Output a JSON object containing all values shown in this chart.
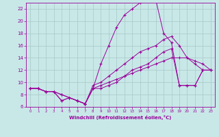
{
  "xlabel": "Windchill (Refroidissement éolien,°C)",
  "bg_color": "#c8e8e8",
  "grid_color": "#a8c8c8",
  "line_color": "#990099",
  "xlim": [
    -0.5,
    23.5
  ],
  "ylim": [
    6,
    23
  ],
  "xticks": [
    0,
    1,
    2,
    3,
    4,
    5,
    6,
    7,
    8,
    9,
    10,
    11,
    12,
    13,
    14,
    15,
    16,
    17,
    18,
    19,
    20,
    21,
    22,
    23
  ],
  "yticks": [
    6,
    8,
    10,
    12,
    14,
    16,
    18,
    20,
    22
  ],
  "series": [
    {
      "x": [
        0,
        1,
        2,
        3,
        4,
        5,
        6,
        7,
        8,
        9,
        10,
        11,
        12,
        13,
        14,
        15,
        16,
        17,
        18,
        19,
        20,
        21,
        22,
        23
      ],
      "y": [
        9,
        9,
        8.5,
        8.5,
        7,
        7.5,
        7,
        6.5,
        9,
        9,
        9.5,
        10,
        11,
        12,
        12.5,
        13,
        14,
        15,
        15.5,
        9.5,
        9.5,
        9.5,
        12,
        12
      ]
    },
    {
      "x": [
        0,
        1,
        2,
        3,
        4,
        5,
        6,
        7,
        8,
        9,
        10,
        11,
        12,
        13,
        14,
        15,
        16,
        17,
        18,
        19,
        20,
        21,
        22,
        23
      ],
      "y": [
        9,
        9,
        8.5,
        8.5,
        7,
        7.5,
        7,
        6.5,
        9,
        13,
        16,
        19,
        21,
        22,
        23,
        23.5,
        23.5,
        18,
        16.5,
        9.5,
        9.5,
        9.5,
        12,
        12
      ]
    },
    {
      "x": [
        0,
        1,
        2,
        3,
        4,
        5,
        6,
        7,
        8,
        9,
        10,
        11,
        12,
        13,
        14,
        15,
        16,
        17,
        18,
        19,
        20,
        21,
        22,
        23
      ],
      "y": [
        9,
        9,
        8.5,
        8.5,
        8,
        7.5,
        7,
        6.5,
        9.5,
        10,
        11,
        12,
        13,
        14,
        15,
        15.5,
        16,
        17,
        17.5,
        16,
        14,
        13.5,
        13,
        12
      ]
    },
    {
      "x": [
        0,
        1,
        2,
        3,
        4,
        5,
        6,
        7,
        8,
        9,
        10,
        11,
        12,
        13,
        14,
        15,
        16,
        17,
        18,
        19,
        20,
        21,
        22,
        23
      ],
      "y": [
        9,
        9,
        8.5,
        8.5,
        8,
        7.5,
        7,
        6.5,
        9,
        9.5,
        10,
        10.5,
        11,
        11.5,
        12,
        12.5,
        13,
        13.5,
        14,
        14,
        14,
        13,
        12,
        12
      ]
    }
  ]
}
